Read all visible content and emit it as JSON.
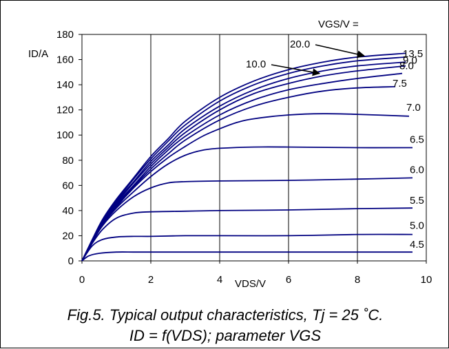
{
  "chart_data": {
    "type": "line",
    "xlabel": "VDS/V",
    "ylabel": "ID/A",
    "legend_title": "VGS/V  =",
    "xlim": [
      0,
      10
    ],
    "ylim": [
      0,
      180
    ],
    "xticks": [
      "0",
      "2",
      "4",
      "6",
      "8",
      "10"
    ],
    "yticks": [
      "0",
      "20",
      "40",
      "60",
      "80",
      "100",
      "120",
      "140",
      "160",
      "180"
    ],
    "grid": "vertical",
    "caption_line1": "Fig.5.  Typical output characteristics, Tj = 25 ˚C.",
    "caption_line2": "ID = f(VDS); parameter VGS",
    "line_color": "#000080",
    "series": [
      {
        "name": "4.5",
        "x": [
          0,
          0.2,
          0.5,
          1,
          1.5,
          2,
          3,
          4,
          6,
          8,
          9.6
        ],
        "y": [
          0,
          4,
          6,
          7,
          7,
          7,
          7,
          7,
          7,
          7,
          7
        ]
      },
      {
        "name": "5.0",
        "x": [
          0,
          0.3,
          0.6,
          1,
          1.5,
          2,
          3,
          4,
          6,
          8,
          9.6
        ],
        "y": [
          0,
          12,
          17,
          19,
          19.5,
          19.5,
          20,
          20,
          20,
          21,
          21
        ]
      },
      {
        "name": "5.5",
        "x": [
          0,
          0.3,
          0.6,
          1,
          1.5,
          2,
          3,
          4,
          6,
          8,
          9.6
        ],
        "y": [
          0,
          14,
          25,
          34,
          38,
          39,
          39.5,
          40,
          40.5,
          41.5,
          42
        ]
      },
      {
        "name": "6.0",
        "x": [
          0,
          0.3,
          0.6,
          1,
          1.5,
          2,
          2.5,
          3,
          4,
          6,
          8,
          9.6
        ],
        "y": [
          0,
          15,
          28,
          40,
          51,
          58,
          62,
          63,
          63.5,
          64,
          65,
          66
        ]
      },
      {
        "name": "6.5",
        "x": [
          0,
          0.3,
          0.6,
          1,
          1.5,
          2,
          2.5,
          3,
          3.5,
          4,
          5,
          6,
          8,
          9.6
        ],
        "y": [
          0,
          15,
          29,
          42,
          55,
          67,
          77,
          84,
          88,
          89.5,
          90.5,
          90.5,
          90,
          90
        ]
      },
      {
        "name": "7.0",
        "x": [
          0,
          0.3,
          0.6,
          1,
          1.5,
          2,
          2.5,
          3,
          3.5,
          4,
          4.5,
          5,
          6,
          7,
          8,
          9.5
        ],
        "y": [
          0,
          15,
          29,
          43,
          58,
          71,
          82,
          91,
          99,
          105,
          110,
          113,
          116,
          117,
          116.5,
          115
        ]
      },
      {
        "name": "7.5",
        "x": [
          0,
          0.3,
          0.6,
          1,
          1.5,
          2,
          2.5,
          3,
          4,
          5,
          6,
          7,
          8,
          9.1
        ],
        "y": [
          0,
          16,
          30,
          44,
          59,
          73,
          85,
          96,
          112,
          123,
          130,
          135,
          137.5,
          138.5
        ]
      },
      {
        "name": "8.0",
        "x": [
          0,
          0.3,
          0.6,
          1,
          1.5,
          2,
          2.5,
          3,
          4,
          5,
          6,
          7,
          8,
          9.3
        ],
        "y": [
          0,
          16,
          30,
          45,
          60,
          75,
          88,
          99,
          116,
          128,
          136,
          141,
          145,
          149
        ]
      },
      {
        "name": "9.0",
        "x": [
          0,
          0.3,
          0.6,
          1,
          1.5,
          2,
          2.5,
          3,
          4,
          5,
          6,
          7,
          8,
          9.4
        ],
        "y": [
          0,
          16,
          31,
          46,
          62,
          77,
          90,
          102,
          120,
          133,
          141,
          147,
          151,
          155
        ]
      },
      {
        "name": "10.0",
        "x": [
          0,
          0.3,
          0.6,
          1,
          1.5,
          2,
          2.5,
          3,
          4,
          5,
          6,
          7,
          8,
          9.4
        ],
        "y": [
          0,
          16,
          31,
          47,
          63,
          79,
          92,
          105,
          123,
          136,
          145,
          151,
          155,
          158
        ]
      },
      {
        "name": "13.5",
        "x": [
          0,
          0.3,
          0.6,
          1,
          1.5,
          2,
          2.5,
          3,
          4,
          5,
          6,
          7,
          8,
          9.4
        ],
        "y": [
          0,
          16,
          32,
          48,
          65,
          81,
          95,
          108,
          127,
          140,
          149,
          155,
          159,
          162
        ]
      },
      {
        "name": "20.0",
        "x": [
          0,
          0.3,
          0.6,
          1,
          1.5,
          2,
          2.5,
          3,
          4,
          5,
          6,
          7,
          8,
          9.4
        ],
        "y": [
          0,
          17,
          33,
          49,
          66,
          83,
          97,
          111,
          130,
          143,
          152,
          158,
          162,
          165
        ]
      }
    ],
    "annotations": [
      {
        "text": "20.0",
        "x": 8.2,
        "y": 163
      },
      {
        "text": "10.0",
        "x": 6.9,
        "y": 149
      }
    ]
  }
}
